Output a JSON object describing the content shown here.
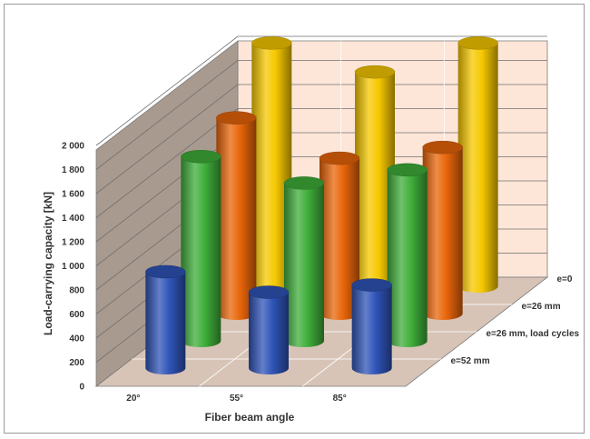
{
  "chart_data": {
    "type": "bar",
    "style": "3d-cylinder",
    "title": "",
    "xlabel": "Fiber beam angle",
    "ylabel": "Load-carrying capacity [kN]",
    "categories": [
      "20°",
      "55°",
      "85°"
    ],
    "ylim": [
      0,
      2000
    ],
    "y_ticks": [
      "0",
      "200",
      "400",
      "600",
      "800",
      "1 000",
      "1 200",
      "1 400",
      "1 600",
      "1 800",
      "2 000"
    ],
    "grid": true,
    "legend_position": "depth-axis-right",
    "series": [
      {
        "name": "e=52 mm",
        "color": "#2f54b8",
        "values": [
          800,
          630,
          690
        ]
      },
      {
        "name": "e=26 mm, load cycles",
        "color": "#3fae3a",
        "values": [
          1530,
          1310,
          1420
        ]
      },
      {
        "name": "e=26 mm",
        "color": "#e8650a",
        "values": [
          1625,
          1290,
          1380
        ]
      },
      {
        "name": "e=0",
        "color": "#f6c800",
        "values": [
          2020,
          1780,
          2020
        ]
      }
    ]
  }
}
